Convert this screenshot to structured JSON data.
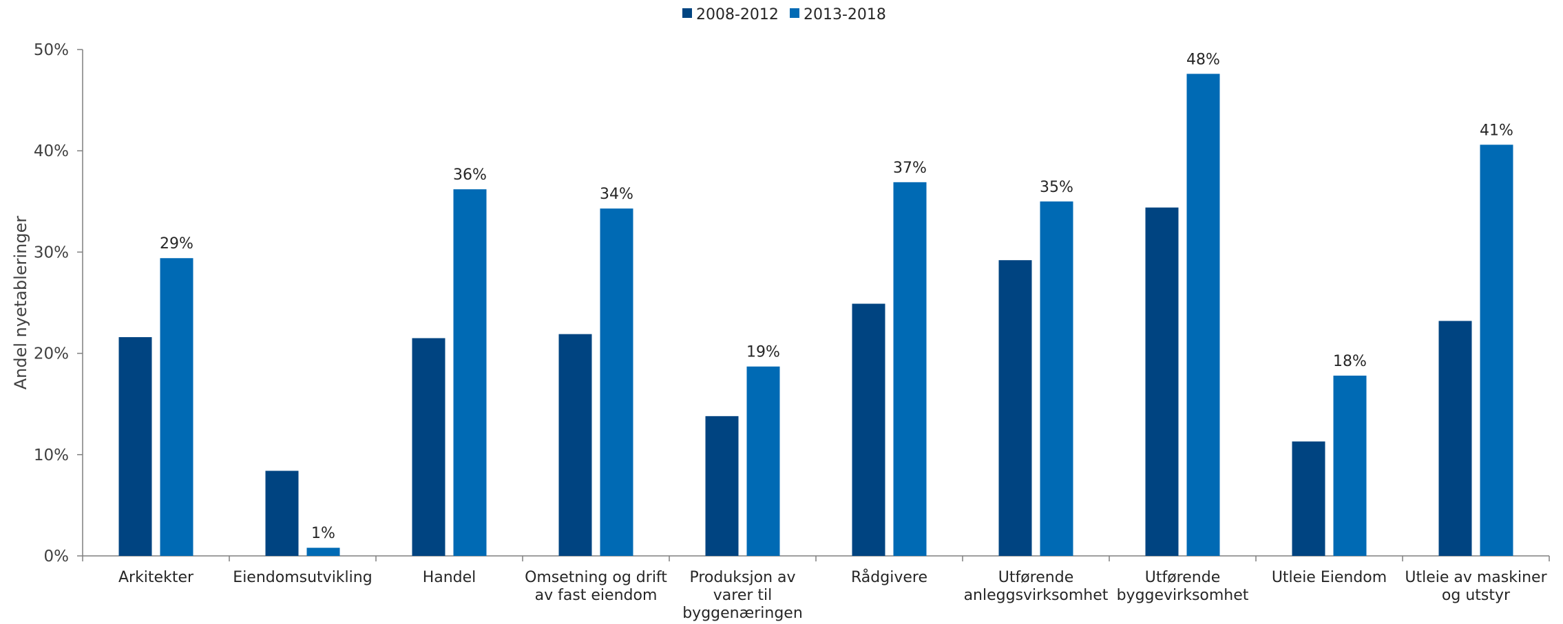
{
  "chart_data": {
    "type": "bar",
    "ylabel": "Andel nyetableringer",
    "ylim": [
      0,
      50
    ],
    "yticks": [
      "0%",
      "10%",
      "20%",
      "30%",
      "40%",
      "50%"
    ],
    "legend_position": "top-center",
    "grid": false,
    "categories": [
      [
        "Arkitekter"
      ],
      [
        "Eiendomsutvikling"
      ],
      [
        "Handel"
      ],
      [
        "Omsetning og drift",
        "av fast eiendom"
      ],
      [
        "Produksjon av",
        "varer til",
        "byggenæringen"
      ],
      [
        "Rådgivere"
      ],
      [
        "Utførende",
        "anleggsvirksomhet"
      ],
      [
        "Utførende",
        "byggevirksomhet"
      ],
      [
        "Utleie Eiendom"
      ],
      [
        "Utleie av maskiner",
        "og utstyr"
      ]
    ],
    "series": [
      {
        "name": "2008-2012",
        "color": "#004481",
        "values": [
          21.6,
          8.4,
          21.5,
          21.9,
          13.8,
          24.9,
          29.2,
          34.4,
          11.3,
          23.2
        ],
        "labels": [
          "",
          "",
          "",
          "",
          "",
          "",
          "",
          "",
          "",
          ""
        ]
      },
      {
        "name": "2013-2018",
        "color": "#006AB4",
        "values": [
          29.4,
          0.8,
          36.2,
          34.3,
          18.7,
          36.9,
          35.0,
          47.6,
          17.8,
          40.6
        ],
        "labels": [
          "29%",
          "1%",
          "36%",
          "34%",
          "19%",
          "37%",
          "35%",
          "48%",
          "18%",
          "41%"
        ]
      }
    ]
  }
}
